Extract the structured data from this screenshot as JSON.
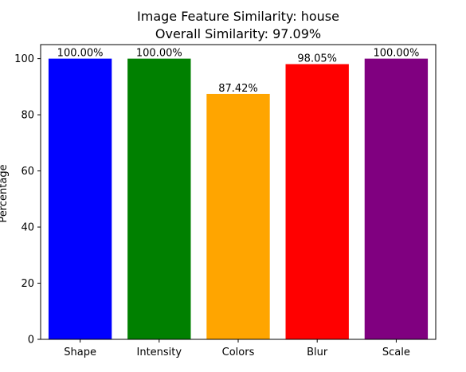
{
  "chart_data": {
    "type": "bar",
    "title": "Image Feature Similarity: house",
    "subtitle": "Overall Similarity: 97.09%",
    "xlabel": "",
    "ylabel": "Percentage",
    "categories": [
      "Shape",
      "Intensity",
      "Colors",
      "Blur",
      "Scale"
    ],
    "values": [
      100.0,
      100.0,
      87.42,
      98.05,
      100.0
    ],
    "value_labels": [
      "100.00%",
      "100.00%",
      "87.42%",
      "98.05%",
      "100.00%"
    ],
    "colors": [
      "#0000ff",
      "#008000",
      "#ffa500",
      "#ff0000",
      "#800080"
    ],
    "ylim": [
      0,
      105
    ],
    "yticks": [
      0,
      20,
      40,
      60,
      80,
      100
    ],
    "ytick_labels": [
      "0",
      "20",
      "40",
      "60",
      "80",
      "100"
    ],
    "grid": false,
    "legend": "none"
  }
}
